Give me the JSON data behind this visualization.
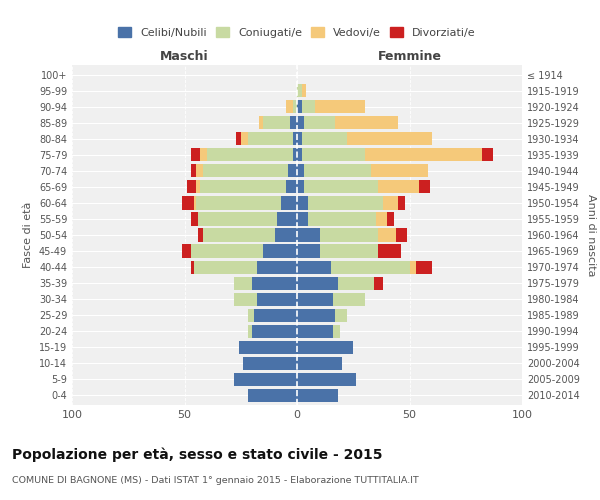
{
  "age_groups": [
    "0-4",
    "5-9",
    "10-14",
    "15-19",
    "20-24",
    "25-29",
    "30-34",
    "35-39",
    "40-44",
    "45-49",
    "50-54",
    "55-59",
    "60-64",
    "65-69",
    "70-74",
    "75-79",
    "80-84",
    "85-89",
    "90-94",
    "95-99",
    "100+"
  ],
  "birth_years": [
    "2010-2014",
    "2005-2009",
    "2000-2004",
    "1995-1999",
    "1990-1994",
    "1985-1989",
    "1980-1984",
    "1975-1979",
    "1970-1974",
    "1965-1969",
    "1960-1964",
    "1955-1959",
    "1950-1954",
    "1945-1949",
    "1940-1944",
    "1935-1939",
    "1930-1934",
    "1925-1929",
    "1920-1924",
    "1915-1919",
    "≤ 1914"
  ],
  "maschi": {
    "celibi": [
      22,
      28,
      24,
      26,
      20,
      19,
      18,
      20,
      18,
      15,
      10,
      9,
      7,
      5,
      4,
      2,
      2,
      3,
      0,
      0,
      0
    ],
    "coniugati": [
      0,
      0,
      0,
      0,
      2,
      3,
      10,
      8,
      28,
      32,
      32,
      35,
      38,
      38,
      38,
      38,
      20,
      12,
      2,
      0,
      0
    ],
    "vedovi": [
      0,
      0,
      0,
      0,
      0,
      0,
      0,
      0,
      0,
      0,
      0,
      0,
      1,
      2,
      3,
      3,
      3,
      2,
      3,
      0,
      0
    ],
    "divorziati": [
      0,
      0,
      0,
      0,
      0,
      0,
      0,
      0,
      1,
      4,
      2,
      3,
      5,
      4,
      2,
      4,
      2,
      0,
      0,
      0,
      0
    ]
  },
  "femmine": {
    "nubili": [
      18,
      26,
      20,
      25,
      16,
      17,
      16,
      18,
      15,
      10,
      10,
      5,
      5,
      3,
      3,
      2,
      2,
      3,
      2,
      0,
      0
    ],
    "coniugate": [
      0,
      0,
      0,
      0,
      3,
      5,
      14,
      16,
      35,
      26,
      26,
      30,
      33,
      33,
      30,
      28,
      20,
      14,
      6,
      2,
      0
    ],
    "vedove": [
      0,
      0,
      0,
      0,
      0,
      0,
      0,
      0,
      3,
      0,
      8,
      5,
      7,
      18,
      25,
      52,
      38,
      28,
      22,
      2,
      0
    ],
    "divorziate": [
      0,
      0,
      0,
      0,
      0,
      0,
      0,
      4,
      7,
      10,
      5,
      3,
      3,
      5,
      0,
      5,
      0,
      0,
      0,
      0,
      0
    ]
  },
  "colors": {
    "celibi": "#4a72a8",
    "coniugati": "#c8daa2",
    "vedovi": "#f5c97a",
    "divorziati": "#cc2020"
  },
  "xlim": 100,
  "title": "Popolazione per età, sesso e stato civile - 2015",
  "subtitle": "COMUNE DI BAGNONE (MS) - Dati ISTAT 1° gennaio 2015 - Elaborazione TUTTITALIA.IT",
  "ylabel_left": "Fasce di età",
  "ylabel_right": "Anni di nascita",
  "xlabel_left": "Maschi",
  "xlabel_right": "Femmine",
  "legend_labels": [
    "Celibi/Nubili",
    "Coniugati/e",
    "Vedovi/e",
    "Divorziati/e"
  ],
  "bg_color": "#ffffff",
  "grid_color": "#cccccc"
}
